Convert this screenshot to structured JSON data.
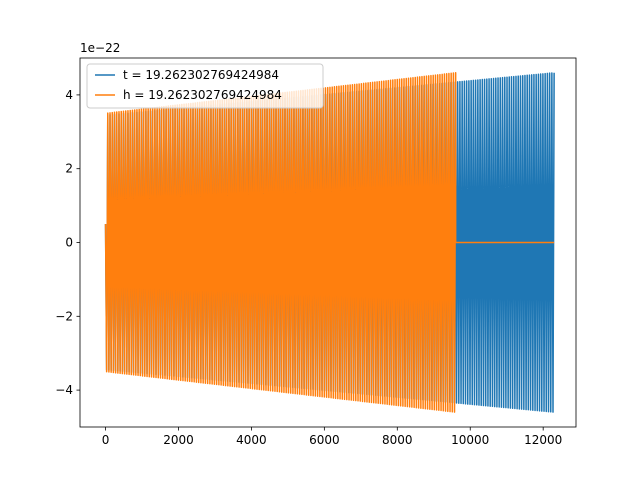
{
  "chart_data": {
    "type": "line",
    "title": "",
    "xlabel": "",
    "ylabel": "",
    "offset_text": "1e−22",
    "xlim": [
      -700,
      12900
    ],
    "ylim": [
      -5.0,
      5.0
    ],
    "x_ticks": [
      0,
      2000,
      4000,
      6000,
      8000,
      10000,
      12000
    ],
    "x_tick_labels": [
      "0",
      "2000",
      "4000",
      "6000",
      "8000",
      "10000",
      "12000"
    ],
    "y_ticks": [
      -4,
      -2,
      0,
      2,
      4
    ],
    "y_tick_labels": [
      "−4",
      "−2",
      "0",
      "2",
      "4"
    ],
    "grid": false,
    "legend_position": "upper left",
    "series": [
      {
        "name": "t = 19.262302769424984",
        "color": "#1f77b4",
        "x_start": 0,
        "x_end": 12300,
        "amplitude_start": 3.45,
        "amplitude_end": 4.6,
        "cycles": 200
      },
      {
        "name": "h = 19.262302769424984",
        "color": "#ff7f0e",
        "x_start": 0,
        "x_end": 9600,
        "amplitude_start": 3.5,
        "amplitude_end": 4.6,
        "cycles": 156,
        "flat_after": 12300
      }
    ]
  }
}
